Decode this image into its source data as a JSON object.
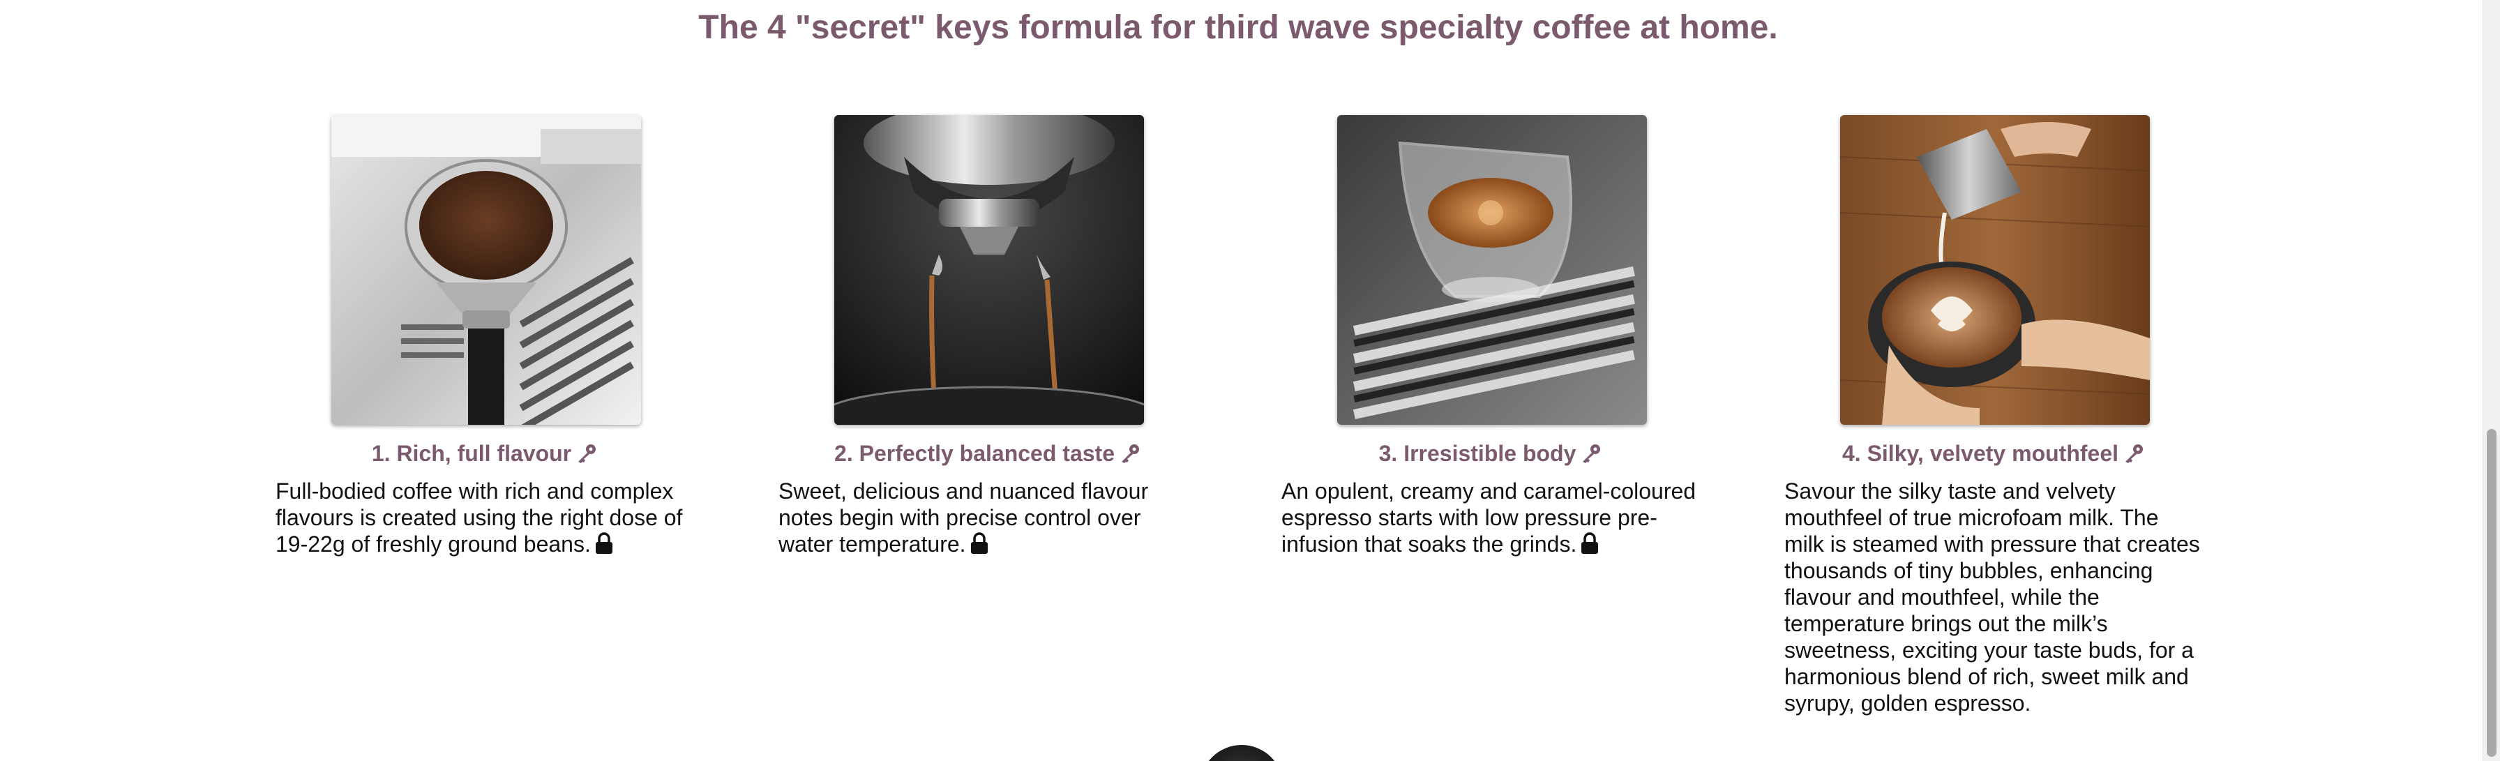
{
  "heading": "The 4 \"secret\" keys formula for third wave specialty coffee at home.",
  "accent_color": "#7c5a6e",
  "icons": {
    "title_icon": "key-icon",
    "body_icon": "lock-icon"
  },
  "cards": [
    {
      "title": "1. Rich, full flavour",
      "body": "Full-bodied coffee with rich and complex flavours is created using the right dose of 19-22g of freshly ground beans.",
      "image": "portafilter-coffee-grounds"
    },
    {
      "title": "2. Perfectly balanced taste",
      "body": "Sweet, delicious and nuanced flavour notes begin with precise control over water temperature.",
      "image": "espresso-extraction"
    },
    {
      "title": "3. Irresistible body",
      "body": "An opulent, creamy and caramel-coloured espresso starts with low pressure pre-infusion that soaks the grinds.",
      "image": "espresso-glass-on-tray"
    },
    {
      "title": "4. Silky, velvety mouthfeel",
      "body": "Savour the silky taste and velvety mouthfeel of true microfoam milk. The milk is steamed with pressure that creates thousands of tiny bubbles, enhancing flavour and mouthfeel, while the temperature brings out the milk’s sweetness, exciting your taste buds, for a harmonious blend of rich, sweet milk and syrupy, golden espresso.",
      "image": "latte-art-pour"
    }
  ]
}
